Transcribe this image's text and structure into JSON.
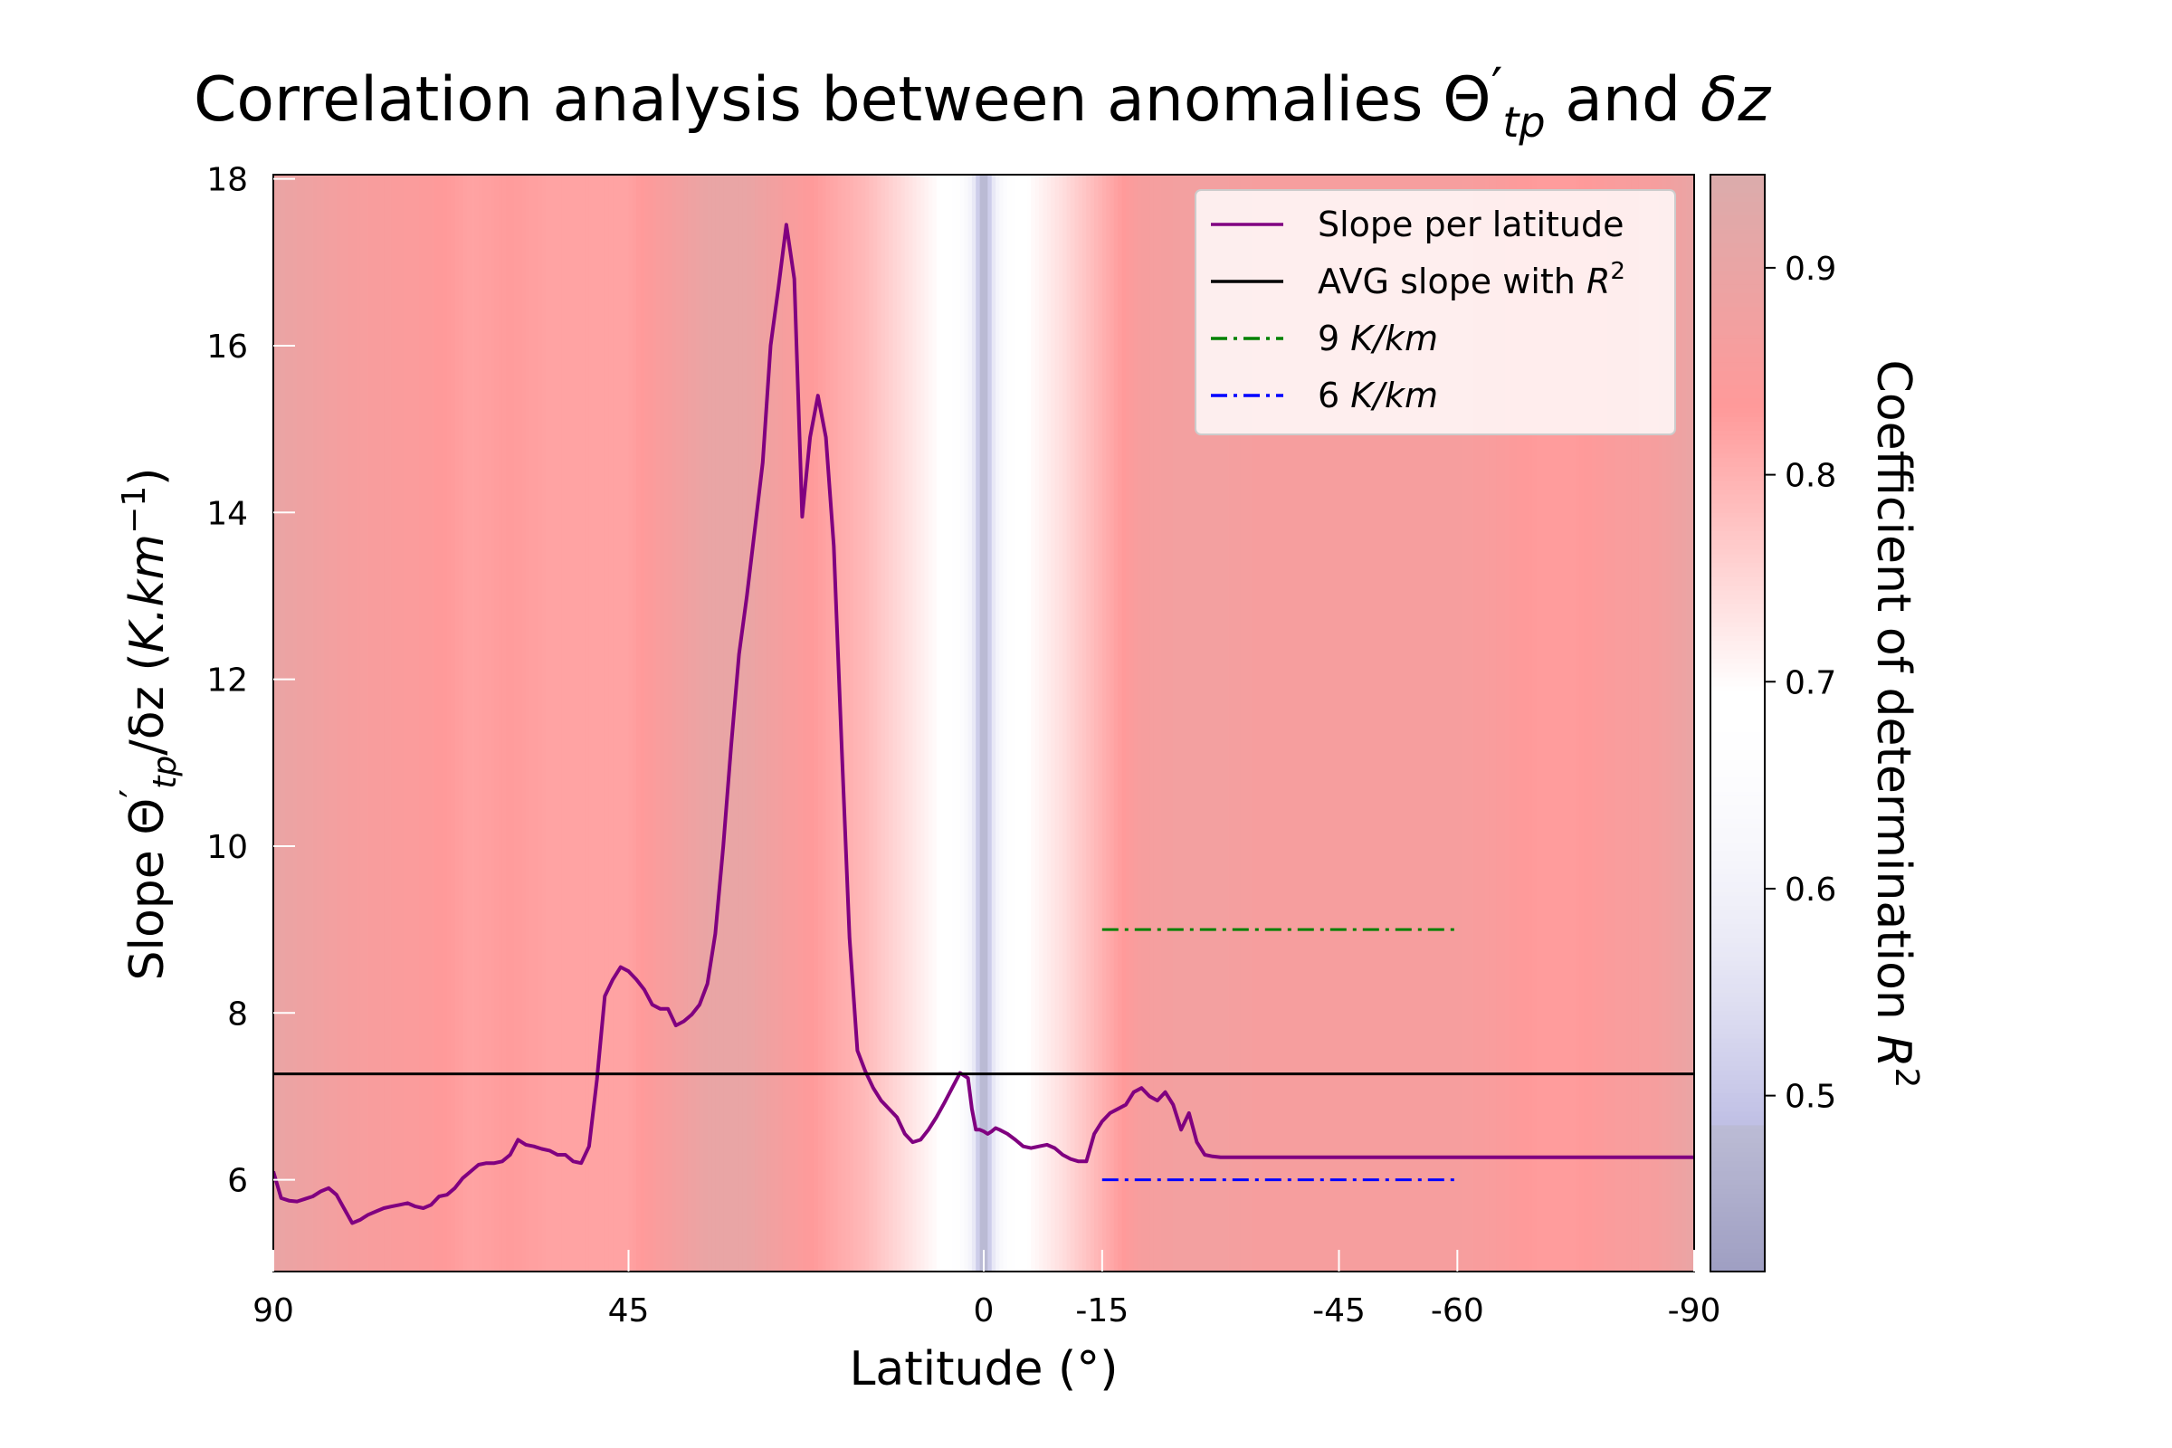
{
  "chart_data": {
    "type": "line",
    "title": {
      "prefix": "Correlation analysis between anomalies ",
      "theta": "Θ",
      "prime": "′",
      "sub": "tp",
      "mid": " and ",
      "math": "δz"
    },
    "xlabel": "Latitude (°)",
    "ylabel": {
      "prefix": "Slope ",
      "theta": "Θ",
      "prime": "′",
      "sub": "tp",
      "mid": "/δz (",
      "unit": "K.km",
      "sup": "−1",
      "end": ")"
    },
    "x_ticks": [
      {
        "value": 90,
        "label": "90"
      },
      {
        "value": 45,
        "label": "45"
      },
      {
        "value": 0,
        "label": "0"
      },
      {
        "value": -15,
        "label": "-15"
      },
      {
        "value": -45,
        "label": "-45"
      },
      {
        "value": -60,
        "label": "-60"
      },
      {
        "value": -90,
        "label": "-90"
      }
    ],
    "y_ticks": [
      6,
      8,
      10,
      12,
      14,
      16,
      18
    ],
    "xlim": [
      90,
      -90
    ],
    "ylim": [
      4.9,
      18.05
    ],
    "grid": false,
    "legend_position": "top-right",
    "series": [
      {
        "name": "Slope per latitude",
        "color": "#800080",
        "style": "solid",
        "x": [
          90,
          89,
          88,
          87,
          86,
          85,
          84,
          83,
          82,
          81,
          80,
          79,
          78.5,
          78,
          77,
          76,
          75,
          74,
          73,
          72,
          71,
          70,
          69,
          68,
          67,
          66,
          65,
          64,
          63,
          62,
          61,
          60,
          59,
          58,
          57,
          56,
          55,
          54,
          53,
          52,
          51,
          50,
          49,
          48,
          47,
          46,
          45,
          44,
          43,
          42,
          41,
          40,
          39,
          38,
          37,
          36,
          35,
          34,
          33,
          32,
          31,
          30,
          29,
          28,
          27,
          26,
          25,
          24,
          23,
          22,
          21,
          20,
          19,
          18,
          17,
          16,
          15,
          14,
          13,
          12,
          11,
          10,
          9,
          8,
          7,
          6,
          5,
          4,
          3,
          2,
          1.5,
          1,
          0.5,
          0,
          -0.5,
          -1,
          -1.5,
          -2,
          -3,
          -4,
          -5,
          -6,
          -7,
          -8,
          -9,
          -10,
          -11,
          -12,
          -13,
          -14,
          -15,
          -16,
          -17,
          -18,
          -19,
          -20,
          -21,
          -22,
          -23,
          -24,
          -25,
          -26,
          -27,
          -28,
          -29,
          -30,
          -31,
          -32,
          -33,
          -34,
          -35,
          -36,
          -37,
          -38,
          -39,
          -40,
          -41,
          -42,
          -43,
          -44,
          -45,
          -46,
          -47,
          -48,
          -49,
          -50,
          -51,
          -52,
          -53,
          -54,
          -55,
          -56,
          -57,
          -58,
          -59,
          -60,
          -61,
          -62,
          -63,
          -64,
          -65,
          -66,
          -67,
          -68,
          -69,
          -70,
          -71,
          -72,
          -73,
          -74,
          -75,
          -76,
          -77,
          -78,
          -79,
          -80,
          -81,
          -82,
          -83,
          -84,
          -85,
          -86,
          -87,
          -88,
          -89,
          -90
        ],
        "y": [
          6.1,
          5.78,
          5.75,
          5.74,
          5.77,
          5.8,
          5.86,
          5.9,
          5.82,
          5.65,
          5.48,
          5.52,
          5.55,
          5.58,
          5.62,
          5.66,
          5.68,
          5.7,
          5.72,
          5.68,
          5.66,
          5.7,
          5.8,
          5.82,
          5.9,
          6.02,
          6.1,
          6.18,
          6.2,
          6.2,
          6.22,
          6.3,
          6.48,
          6.42,
          6.4,
          6.37,
          6.35,
          6.3,
          6.3,
          6.22,
          6.2,
          6.4,
          7.2,
          8.2,
          8.4,
          8.55,
          8.5,
          8.4,
          8.28,
          8.1,
          8.05,
          8.05,
          7.85,
          7.9,
          7.98,
          8.1,
          8.35,
          8.95,
          10.0,
          11.2,
          12.3,
          13.0,
          13.8,
          14.6,
          16.0,
          16.7,
          17.45,
          16.8,
          13.95,
          14.9,
          15.4,
          14.9,
          13.6,
          11.2,
          8.9,
          7.55,
          7.3,
          7.1,
          6.95,
          6.85,
          6.75,
          6.55,
          6.45,
          6.48,
          6.6,
          6.75,
          6.92,
          7.1,
          7.28,
          7.22,
          6.85,
          6.6,
          6.6,
          6.58,
          6.55,
          6.58,
          6.62,
          6.6,
          6.55,
          6.48,
          6.4,
          6.38,
          6.4,
          6.42,
          6.38,
          6.3,
          6.25,
          6.22,
          6.22,
          6.55,
          6.7,
          6.8,
          6.85,
          6.9,
          7.05,
          7.1,
          7.0,
          6.95,
          7.05,
          6.9,
          6.6,
          6.8,
          6.45,
          6.3,
          6.28,
          6.27,
          6.27,
          6.27,
          6.27,
          6.27,
          6.27,
          6.27,
          6.27,
          6.27,
          6.27,
          6.27,
          6.27,
          6.27,
          6.27,
          6.27,
          6.27,
          6.27,
          6.27,
          6.27,
          6.27,
          6.27,
          6.27,
          6.27,
          6.27,
          6.27,
          6.27,
          6.27,
          6.27,
          6.27,
          6.27,
          6.27,
          6.27,
          6.27,
          6.27,
          6.27,
          6.27,
          6.27,
          6.27,
          6.27,
          6.27,
          6.27,
          6.27,
          6.27,
          6.27,
          6.27,
          6.27,
          6.27,
          6.27,
          6.27,
          6.27,
          6.27,
          6.27,
          6.27,
          6.27,
          6.27,
          6.27,
          6.27,
          6.27,
          6.27,
          6.27,
          6.27
        ]
      },
      {
        "name": "AVG slope with R²",
        "color": "#000000",
        "style": "solid",
        "x": [
          90,
          -90
        ],
        "y": [
          7.27,
          7.27
        ]
      },
      {
        "name": "9 K/km",
        "color": "#008000",
        "style": "dashdot",
        "x": [
          -15,
          -60
        ],
        "y": [
          9,
          9
        ]
      },
      {
        "name": "6 K/km",
        "color": "#0000ff",
        "style": "dashdot",
        "x": [
          -15,
          -60
        ],
        "y": [
          6,
          6
        ]
      }
    ],
    "r2_background": {
      "x": [
        90,
        85,
        80,
        75,
        70,
        65,
        60,
        55,
        50,
        45,
        40,
        35,
        30,
        25,
        20,
        15,
        10,
        6,
        3,
        1.5,
        0.5,
        -0.5,
        -1.5,
        -3,
        -6,
        -10,
        -15,
        -20,
        -25,
        -30,
        -35,
        -40,
        -45,
        -50,
        -55,
        -60,
        -65,
        -70,
        -75,
        -80,
        -85,
        -90
      ],
      "r2": [
        0.9,
        0.88,
        0.86,
        0.85,
        0.84,
        0.82,
        0.83,
        0.82,
        0.82,
        0.82,
        0.86,
        0.9,
        0.9,
        0.86,
        0.82,
        0.79,
        0.74,
        0.7,
        0.66,
        0.6,
        0.48,
        0.48,
        0.6,
        0.66,
        0.7,
        0.74,
        0.8,
        0.86,
        0.87,
        0.87,
        0.86,
        0.86,
        0.86,
        0.86,
        0.86,
        0.86,
        0.85,
        0.83,
        0.83,
        0.85,
        0.86,
        0.9
      ]
    },
    "colorbar": {
      "label": "Coefficient of determination",
      "label_math": "R",
      "label_sup": "2",
      "range": [
        0.415,
        0.945
      ],
      "ticks": [
        {
          "value": 0.5,
          "label": "0.5"
        },
        {
          "value": 0.6,
          "label": "0.6"
        },
        {
          "value": 0.7,
          "label": "0.7"
        },
        {
          "value": 0.8,
          "label": "0.8"
        },
        {
          "value": 0.9,
          "label": "0.9"
        }
      ]
    },
    "legend": [
      {
        "text": "Slope per latitude",
        "math": "",
        "sup": ""
      },
      {
        "text": "AVG slope with ",
        "math": "R",
        "sup": "2"
      },
      {
        "text": "9 ",
        "math": "K/km",
        "sup": ""
      },
      {
        "text": "6 ",
        "math": "K/km",
        "sup": ""
      }
    ]
  }
}
